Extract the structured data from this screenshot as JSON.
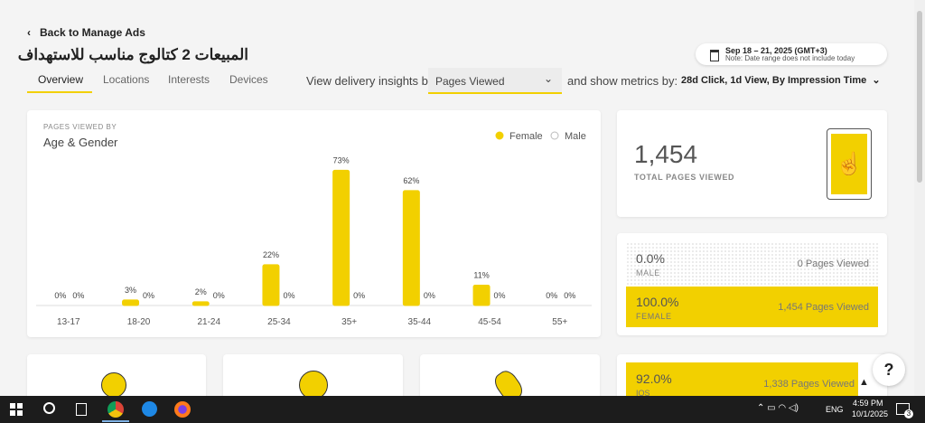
{
  "header": {
    "back": "Back to Manage Ads",
    "title": "المبيعات 2 كتالوج مناسب للاستهداف",
    "tabs": [
      "Overview",
      "Locations",
      "Interests",
      "Devices"
    ],
    "insights_label": "View delivery insights by",
    "insights_select": "Pages Viewed",
    "metrics_label": "and show metrics by:",
    "metrics_value": "28d Click, 1d View, By Impression Time",
    "date_range": "Sep 18 – 21, 2025 (GMT+3)",
    "date_note": "Note: Date range does not include today"
  },
  "chart_data": {
    "type": "bar",
    "subtitle": "PAGES VIEWED BY",
    "title": "Age & Gender",
    "categories": [
      "13-17",
      "18-20",
      "21-24",
      "25-34",
      "35+",
      "35-44",
      "45-54",
      "55+"
    ],
    "series": [
      {
        "name": "Female",
        "color": "#f2d000",
        "values": [
          0,
          3,
          2,
          22,
          73,
          62,
          11,
          0
        ],
        "value_labels": [
          "0%",
          "3%",
          "2%",
          "22%",
          "73%",
          "62%",
          "11%",
          "0%"
        ]
      },
      {
        "name": "Male",
        "color": "#d9d9d9",
        "values": [
          0,
          0,
          0,
          0,
          0,
          0,
          0,
          0
        ],
        "value_labels": [
          "0%",
          "0%",
          "0%",
          "0%",
          "0%",
          "0%",
          "0%",
          "0%"
        ]
      }
    ]
  },
  "total": {
    "value": "1,454",
    "label": "TOTAL PAGES VIEWED"
  },
  "gender": {
    "male_pct": "0.0%",
    "male_label": "MALE",
    "male_count": "0 Pages Viewed",
    "female_pct": "100.0%",
    "female_label": "FEMALE",
    "female_count": "1,454 Pages Viewed"
  },
  "device": {
    "pct": "92.0%",
    "label": "IOS",
    "count": "1,338 Pages Viewed"
  },
  "taskbar": {
    "lang": "ENG",
    "time": "4:59 PM",
    "date": "10/1/2025",
    "notifications": "3"
  }
}
